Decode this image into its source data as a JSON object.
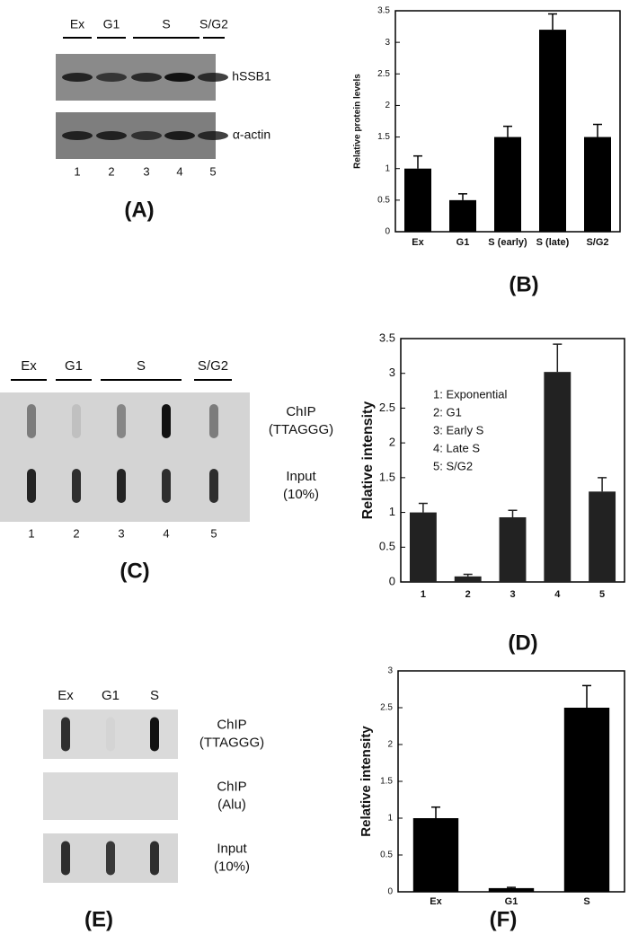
{
  "blots": [
    {
      "panel_label": "(A)",
      "lane_groups": [
        "Ex",
        "G1",
        "S",
        "S/G2"
      ],
      "rows": [
        [
          "hSSB1"
        ],
        [
          "α-actin"
        ]
      ],
      "lane_numbers": [
        "1",
        "2",
        "3",
        "4",
        "5"
      ]
    },
    {
      "panel_label": "(C)",
      "lane_groups": [
        "Ex",
        "G1",
        "S",
        "S/G2"
      ],
      "rows": [
        [
          "ChIP",
          "(TTAGGG)"
        ],
        [
          "Input",
          "(10%)"
        ]
      ],
      "lane_numbers": [
        "1",
        "2",
        "3",
        "4",
        "5"
      ]
    },
    {
      "panel_label": "(E)",
      "lane_groups": [
        "Ex",
        "G1",
        "S"
      ],
      "rows": [
        [
          "ChIP",
          "(TTAGGG)"
        ],
        [
          "ChIP",
          "(Alu)"
        ],
        [
          "Input",
          "(10%)"
        ]
      ]
    }
  ],
  "chart_data": [
    {
      "type": "bar",
      "panel_label": "(B)",
      "ylabel": "Relative protein levels",
      "categories": [
        "Ex",
        "G1",
        "S (early)",
        "S (late)",
        "S/G2"
      ],
      "values": [
        1.0,
        0.5,
        1.5,
        3.2,
        1.5
      ],
      "errors": [
        0.2,
        0.1,
        0.17,
        0.25,
        0.2
      ],
      "color": "#000000",
      "ylim": [
        0,
        3.5
      ],
      "yticks": [
        0,
        0.5,
        1,
        1.5,
        2,
        2.5,
        3,
        3.5
      ]
    },
    {
      "type": "bar",
      "panel_label": "(D)",
      "ylabel": "Relative intensity",
      "categories": [
        "1",
        "2",
        "3",
        "4",
        "5"
      ],
      "values": [
        1.0,
        0.08,
        0.93,
        3.02,
        1.3
      ],
      "errors": [
        0.13,
        0.03,
        0.1,
        0.4,
        0.2
      ],
      "color": "#222222",
      "ylim": [
        0,
        3.5
      ],
      "yticks": [
        0,
        0.5,
        1,
        1.5,
        2,
        2.5,
        3,
        3.5
      ],
      "annotations": [
        "1: Exponential",
        "2: G1",
        "3: Early S",
        "4: Late S",
        "5: S/G2"
      ]
    },
    {
      "type": "bar",
      "panel_label": "(F)",
      "ylabel": "Relative intensity",
      "categories": [
        "Ex",
        "G1",
        "S"
      ],
      "values": [
        1.0,
        0.05,
        2.5
      ],
      "errors": [
        0.15,
        0.01,
        0.3
      ],
      "color": "#000000",
      "ylim": [
        0,
        3
      ],
      "yticks": [
        0,
        0.5,
        1,
        1.5,
        2,
        2.5,
        3
      ]
    }
  ]
}
